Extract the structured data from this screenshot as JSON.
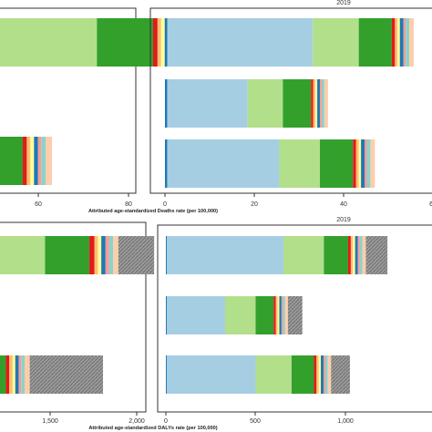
{
  "palette": [
    "#a6cee3",
    "#b2df8a",
    "#33a02c",
    "#fb9a99",
    "#e31a1c",
    "#fdbf6f",
    "#ff7f00",
    "#1f78b4",
    "#6a3d9a",
    "#cab2d6",
    "#ffff99",
    "#b15928",
    "#8dd3c7",
    "#fdcdac",
    "#999999"
  ],
  "chart_data": [
    {
      "type": "bar",
      "stacked": true,
      "orientation": "horizontal",
      "title": "",
      "xlabel": "",
      "xticks": [
        "60",
        "80"
      ],
      "rows": [
        {
          "segments": [
            {
              "value": 24.0,
              "color_index": 1
            },
            {
              "value": 12.5,
              "color_index": 2
            },
            {
              "value": 1.0,
              "color_index": 4
            },
            {
              "value": 0.8,
              "color_index": 5
            },
            {
              "value": 0.8,
              "color_index": 10
            },
            {
              "value": 1.0,
              "color_index": 7
            },
            {
              "value": 0.8,
              "color_index": 3
            },
            {
              "value": 1.0,
              "color_index": 12
            },
            {
              "value": 1.2,
              "color_index": 13
            }
          ]
        },
        {
          "segments": [
            {
              "value": 7.5,
              "color_index": 2
            },
            {
              "value": 0.9,
              "color_index": 4
            },
            {
              "value": 0.8,
              "color_index": 5
            },
            {
              "value": 0.8,
              "color_index": 10
            },
            {
              "value": 0.9,
              "color_index": 7
            },
            {
              "value": 0.7,
              "color_index": 3
            },
            {
              "value": 1.0,
              "color_index": 12
            },
            {
              "value": 1.4,
              "color_index": 13
            }
          ]
        }
      ]
    },
    {
      "type": "bar",
      "stacked": true,
      "orientation": "horizontal",
      "title": "2019",
      "xlabel": "Attributed age-standardized Deaths rate (per 100,000)",
      "xlim": [
        0,
        60
      ],
      "xticks": [
        "0",
        "20",
        "40",
        "6"
      ],
      "rows": [
        {
          "segments": [
            {
              "value": 0.5,
              "color_index": 7
            },
            {
              "value": 32.6,
              "color_index": 0
            },
            {
              "value": 10.3,
              "color_index": 1
            },
            {
              "value": 7.4,
              "color_index": 2
            },
            {
              "value": 0.7,
              "color_index": 4
            },
            {
              "value": 0.6,
              "color_index": 5
            },
            {
              "value": 0.5,
              "color_index": 10
            },
            {
              "value": 0.8,
              "color_index": 7
            },
            {
              "value": 0.5,
              "color_index": 3
            },
            {
              "value": 0.8,
              "color_index": 12
            },
            {
              "value": 1.0,
              "color_index": 13
            }
          ]
        },
        {
          "segments": [
            {
              "value": 0.5,
              "color_index": 7
            },
            {
              "value": 18.0,
              "color_index": 0
            },
            {
              "value": 7.9,
              "color_index": 1
            },
            {
              "value": 6.3,
              "color_index": 2
            },
            {
              "value": 0.5,
              "color_index": 4
            },
            {
              "value": 0.5,
              "color_index": 5
            },
            {
              "value": 0.4,
              "color_index": 10
            },
            {
              "value": 0.6,
              "color_index": 7
            },
            {
              "value": 0.4,
              "color_index": 3
            },
            {
              "value": 0.6,
              "color_index": 12
            },
            {
              "value": 0.8,
              "color_index": 13
            }
          ]
        },
        {
          "segments": [
            {
              "value": 0.5,
              "color_index": 7
            },
            {
              "value": 25.1,
              "color_index": 0
            },
            {
              "value": 9.1,
              "color_index": 1
            },
            {
              "value": 7.4,
              "color_index": 2
            },
            {
              "value": 0.7,
              "color_index": 4
            },
            {
              "value": 0.6,
              "color_index": 5
            },
            {
              "value": 0.5,
              "color_index": 10
            },
            {
              "value": 0.8,
              "color_index": 7
            },
            {
              "value": 0.5,
              "color_index": 3
            },
            {
              "value": 0.8,
              "color_index": 12
            },
            {
              "value": 1.0,
              "color_index": 13
            }
          ]
        }
      ]
    },
    {
      "type": "bar",
      "stacked": true,
      "orientation": "horizontal",
      "title": "",
      "xlabel": "",
      "xticks": [
        "1,500",
        "2,000"
      ],
      "rows": [
        {
          "segments": [
            {
              "value": 350,
              "color_index": 1
            },
            {
              "value": 260,
              "color_index": 2
            },
            {
              "value": 30,
              "color_index": 4
            },
            {
              "value": 20,
              "color_index": 5
            },
            {
              "value": 20,
              "color_index": 10
            },
            {
              "value": 25,
              "color_index": 7
            },
            {
              "value": 20,
              "color_index": 3
            },
            {
              "value": 25,
              "color_index": 12
            },
            {
              "value": 30,
              "color_index": 13
            },
            {
              "value": 210,
              "color_index": 14
            }
          ]
        },
        {
          "segments": [
            {
              "value": 120,
              "color_index": 2
            },
            {
              "value": 20,
              "color_index": 4
            },
            {
              "value": 20,
              "color_index": 5
            },
            {
              "value": 15,
              "color_index": 10
            },
            {
              "value": 20,
              "color_index": 7
            },
            {
              "value": 15,
              "color_index": 3
            },
            {
              "value": 20,
              "color_index": 12
            },
            {
              "value": 30,
              "color_index": 13
            },
            {
              "value": 430,
              "color_index": 14
            }
          ]
        }
      ]
    },
    {
      "type": "bar",
      "stacked": true,
      "orientation": "horizontal",
      "title": "2019",
      "xlabel": "Attributed age-standardized DALYs rate (per 100,000)",
      "xlim": [
        0,
        1000
      ],
      "xticks": [
        "0",
        "500",
        "1,000"
      ],
      "rows": [
        {
          "segments": [
            {
              "value": 5,
              "color_index": 7
            },
            {
              "value": 650,
              "color_index": 0
            },
            {
              "value": 225,
              "color_index": 1
            },
            {
              "value": 135,
              "color_index": 2
            },
            {
              "value": 15,
              "color_index": 4
            },
            {
              "value": 12,
              "color_index": 5
            },
            {
              "value": 12,
              "color_index": 10
            },
            {
              "value": 15,
              "color_index": 7
            },
            {
              "value": 10,
              "color_index": 3
            },
            {
              "value": 15,
              "color_index": 12
            },
            {
              "value": 20,
              "color_index": 13
            },
            {
              "value": 120,
              "color_index": 14
            }
          ]
        },
        {
          "segments": [
            {
              "value": 5,
              "color_index": 7
            },
            {
              "value": 325,
              "color_index": 0
            },
            {
              "value": 170,
              "color_index": 1
            },
            {
              "value": 100,
              "color_index": 2
            },
            {
              "value": 12,
              "color_index": 4
            },
            {
              "value": 10,
              "color_index": 5
            },
            {
              "value": 10,
              "color_index": 10
            },
            {
              "value": 12,
              "color_index": 7
            },
            {
              "value": 8,
              "color_index": 3
            },
            {
              "value": 12,
              "color_index": 12
            },
            {
              "value": 16,
              "color_index": 13
            },
            {
              "value": 80,
              "color_index": 14
            }
          ]
        },
        {
          "segments": [
            {
              "value": 5,
              "color_index": 7
            },
            {
              "value": 495,
              "color_index": 0
            },
            {
              "value": 200,
              "color_index": 1
            },
            {
              "value": 125,
              "color_index": 2
            },
            {
              "value": 14,
              "color_index": 4
            },
            {
              "value": 12,
              "color_index": 5
            },
            {
              "value": 12,
              "color_index": 10
            },
            {
              "value": 15,
              "color_index": 7
            },
            {
              "value": 10,
              "color_index": 3
            },
            {
              "value": 14,
              "color_index": 12
            },
            {
              "value": 18,
              "color_index": 13
            },
            {
              "value": 105,
              "color_index": 14
            }
          ]
        }
      ]
    }
  ]
}
